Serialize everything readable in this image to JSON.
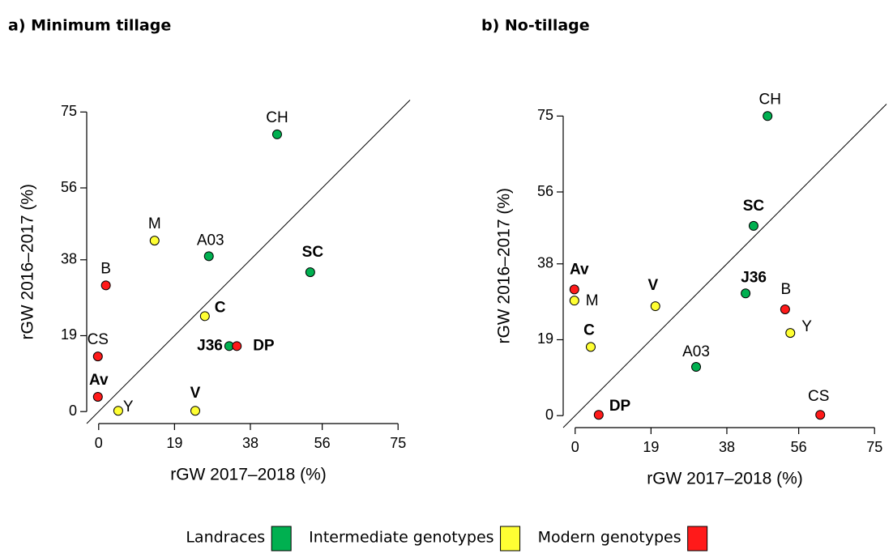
{
  "chart_data": [
    {
      "type": "scatter",
      "title": "a) Minimum tillage",
      "xlabel": "rGW 2017–2018 (%)",
      "ylabel": "rGW 2016–2017 (%)",
      "xlim": [
        -3,
        78
      ],
      "ylim": [
        -3,
        78
      ],
      "xticks": [
        0,
        19,
        38,
        56,
        75
      ],
      "yticks": [
        0,
        19,
        38,
        56,
        75
      ],
      "diagonal": true,
      "legend": "bottom",
      "series": [
        {
          "name": "Landraces",
          "color": "#00b050",
          "labels": [
            "CH",
            "A03",
            "SC",
            "J36"
          ],
          "x": [
            44.7,
            27.6,
            53.0,
            32.7
          ],
          "values": [
            69.4,
            38.9,
            34.9,
            16.4
          ],
          "label_colors": [
            "#000000",
            "#000000",
            "#1a1ad6",
            "#1a1ad6"
          ]
        },
        {
          "name": "Intermediate genotypes",
          "color": "#ffff33",
          "labels": [
            "M",
            "C",
            "V",
            "Y"
          ],
          "x": [
            14.0,
            26.6,
            24.2,
            4.9
          ],
          "values": [
            42.8,
            23.9,
            0.2,
            0.2
          ],
          "label_colors": [
            "#000000",
            "#1a1ad6",
            "#1a1ad6",
            "#000000"
          ]
        },
        {
          "name": "Modern genotypes",
          "color": "#ff1a1a",
          "labels": [
            "B",
            "CS",
            "Av",
            "DP"
          ],
          "x": [
            1.8,
            -0.2,
            -0.2,
            34.6
          ],
          "values": [
            31.6,
            13.8,
            3.7,
            16.4
          ],
          "label_colors": [
            "#000000",
            "#000000",
            "#1a1ad6",
            "#1a1ad6"
          ]
        }
      ]
    },
    {
      "type": "scatter",
      "title": "b) No-tillage",
      "xlabel": "rGW 2017–2018 (%)",
      "ylabel": "rGW 2016–2017 (%)",
      "xlim": [
        -3,
        78
      ],
      "ylim": [
        -3,
        78
      ],
      "xticks": [
        0,
        19,
        38,
        56,
        75
      ],
      "yticks": [
        0,
        19,
        38,
        56,
        75
      ],
      "diagonal": true,
      "series": [
        {
          "color": "#00b050",
          "labels": [
            "CH",
            "SC",
            "J36",
            "A03"
          ],
          "x": [
            48.2,
            44.7,
            42.7,
            30.3
          ],
          "values": [
            75.0,
            47.5,
            30.6,
            12.2
          ],
          "label_colors": [
            "#000000",
            "#1a1ad6",
            "#1a1ad6",
            "#000000"
          ]
        },
        {
          "color": "#ffff33",
          "labels": [
            "M",
            "V",
            "C",
            "Y"
          ],
          "x": [
            -0.2,
            20.1,
            3.9,
            53.9
          ],
          "values": [
            28.8,
            27.4,
            17.2,
            20.7
          ],
          "label_colors": [
            "#000000",
            "#1a1ad6",
            "#1a1ad6",
            "#000000"
          ]
        },
        {
          "color": "#ff1a1a",
          "labels": [
            "Av",
            "DP",
            "B",
            "CS"
          ],
          "x": [
            -0.2,
            5.9,
            52.6,
            61.4
          ],
          "values": [
            31.6,
            0.2,
            26.6,
            0.2
          ],
          "label_colors": [
            "#1a1ad6",
            "#1a1ad6",
            "#000000",
            "#000000"
          ]
        }
      ]
    }
  ]
}
